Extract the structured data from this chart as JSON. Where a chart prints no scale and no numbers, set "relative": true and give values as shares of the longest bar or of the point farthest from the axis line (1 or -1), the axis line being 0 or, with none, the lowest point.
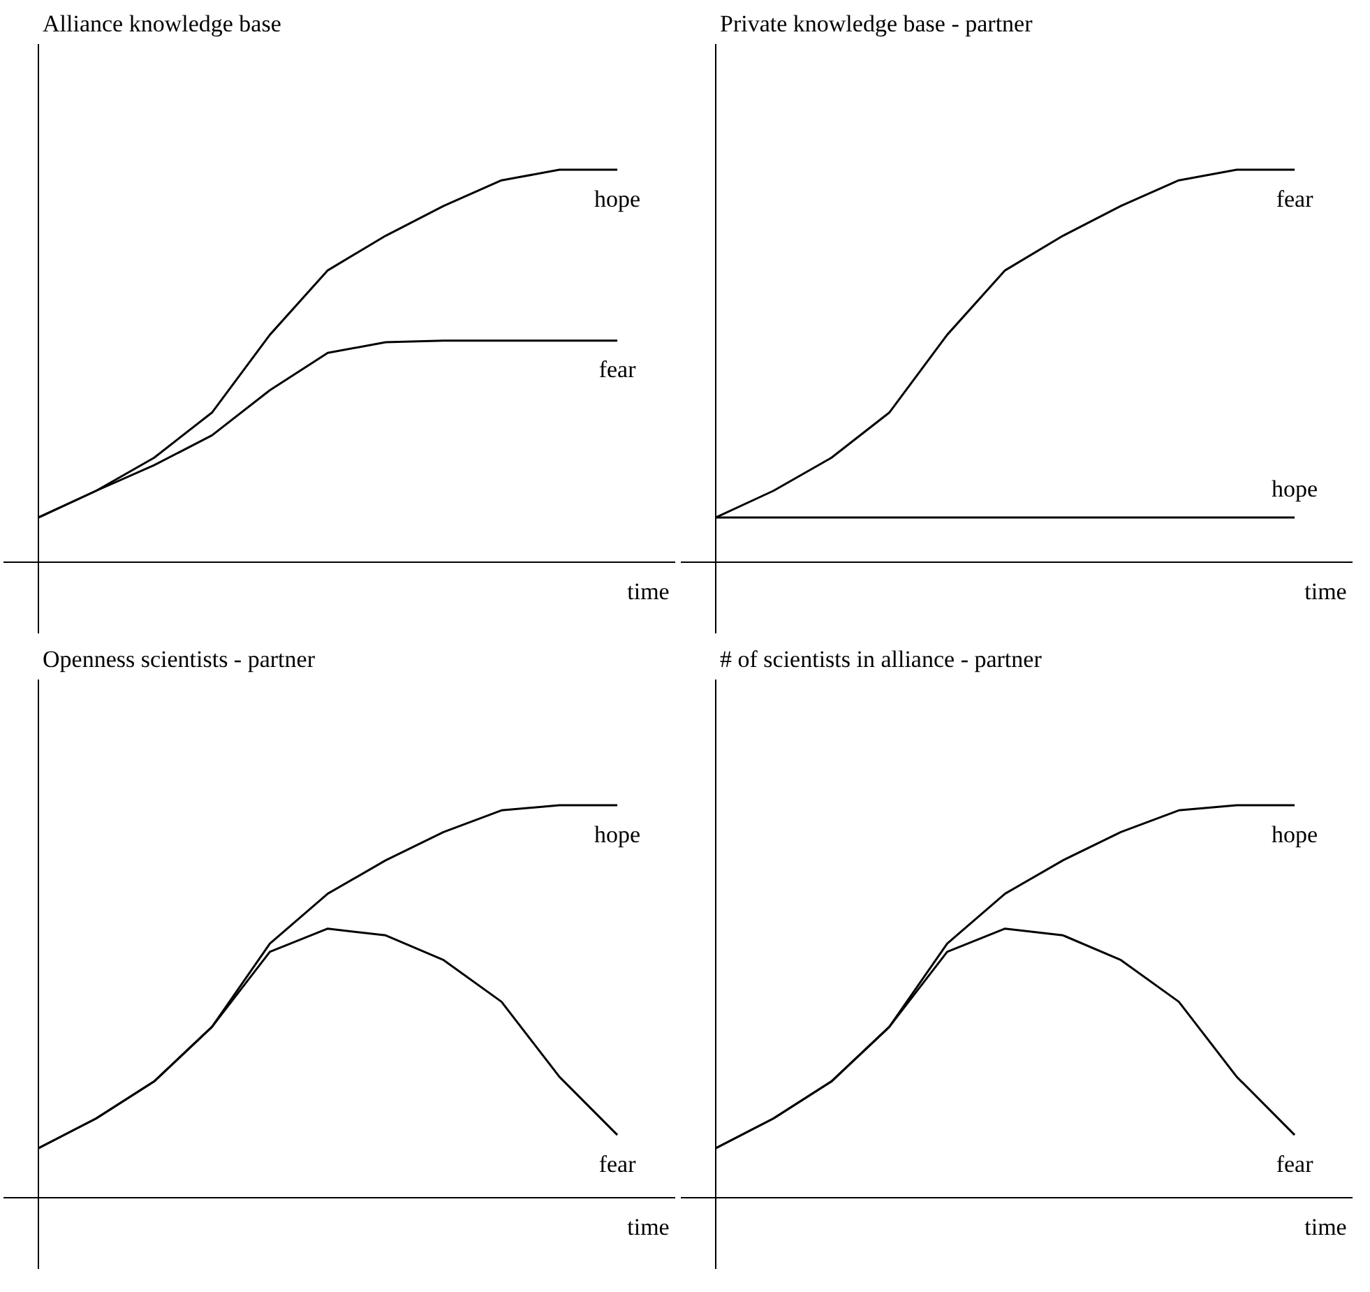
{
  "chart_data": [
    {
      "type": "line",
      "title": "Alliance knowledge base",
      "xlabel": "time",
      "relative": true,
      "legend": false,
      "categories": [
        null,
        null,
        null,
        null,
        null,
        null,
        null,
        null,
        null,
        null,
        null
      ],
      "series": [
        {
          "name": "hope",
          "color": "#000000",
          "values": [
            0.115,
            0.183,
            0.267,
            0.382,
            0.58,
            0.744,
            0.832,
            0.908,
            0.973,
            1,
            1
          ]
        },
        {
          "name": "fear",
          "color": "#000000",
          "values": [
            0.115,
            0.183,
            0.248,
            0.324,
            0.439,
            0.534,
            0.561,
            0.565,
            0.565,
            0.565,
            0.565
          ]
        }
      ]
    },
    {
      "type": "line",
      "title": "Private  knowledge base - partner",
      "xlabel": "time",
      "relative": true,
      "legend": false,
      "categories": [
        null,
        null,
        null,
        null,
        null,
        null,
        null,
        null,
        null,
        null,
        null
      ],
      "series": [
        {
          "name": "fear",
          "color": "#000000",
          "values": [
            0.115,
            0.183,
            0.267,
            0.382,
            0.58,
            0.744,
            0.832,
            0.908,
            0.973,
            1,
            1
          ]
        },
        {
          "name": "hope",
          "color": "#000000",
          "values": [
            0.115,
            0.115,
            0.115,
            0.115,
            0.115,
            0.115,
            0.115,
            0.115,
            0.115,
            0.115,
            0.115
          ]
        }
      ]
    },
    {
      "type": "line",
      "title": "Openness scientists - partner",
      "xlabel": "time",
      "relative": true,
      "legend": false,
      "categories": [
        null,
        null,
        null,
        null,
        null,
        null,
        null,
        null,
        null,
        null,
        null
      ],
      "series": [
        {
          "name": "hope",
          "color": "#000000",
          "values": [
            0.127,
            0.203,
            0.297,
            0.436,
            0.648,
            0.775,
            0.86,
            0.932,
            0.987,
            1,
            1
          ]
        },
        {
          "name": "fear",
          "color": "#000000",
          "values": [
            0.127,
            0.203,
            0.297,
            0.436,
            0.627,
            0.686,
            0.669,
            0.606,
            0.5,
            0.309,
            0.161
          ]
        }
      ]
    },
    {
      "type": "line",
      "title": "# of scientists in alliance - partner",
      "xlabel": "time",
      "relative": true,
      "legend": false,
      "categories": [
        null,
        null,
        null,
        null,
        null,
        null,
        null,
        null,
        null,
        null,
        null
      ],
      "series": [
        {
          "name": "hope",
          "color": "#000000",
          "values": [
            0.127,
            0.203,
            0.297,
            0.436,
            0.648,
            0.775,
            0.86,
            0.932,
            0.987,
            1,
            1
          ]
        },
        {
          "name": "fear",
          "color": "#000000",
          "values": [
            0.127,
            0.203,
            0.297,
            0.436,
            0.627,
            0.686,
            0.669,
            0.606,
            0.5,
            0.309,
            0.161
          ]
        }
      ]
    }
  ]
}
